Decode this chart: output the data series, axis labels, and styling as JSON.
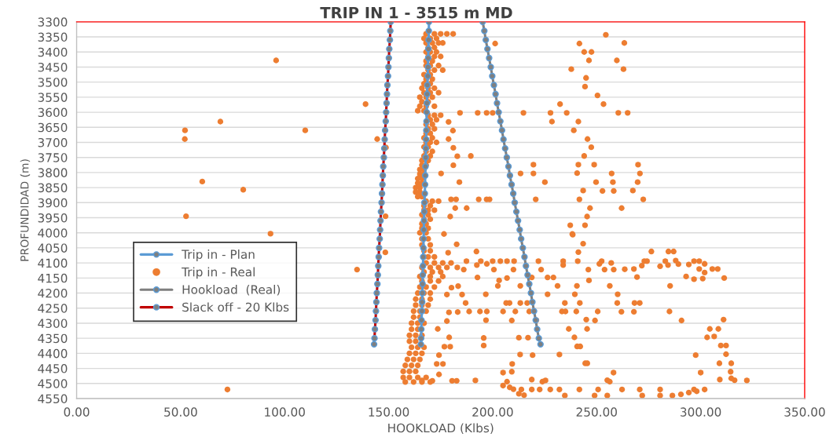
{
  "chart_data": {
    "type": "line",
    "title": "TRIP IN 1 - 3515 m MD",
    "xlabel": "HOOKLOAD (Klbs)",
    "ylabel": "PROFUNDIDAD (m)",
    "xlim": [
      0,
      350
    ],
    "xticks": [
      {
        "value": 0,
        "label": "0.00"
      },
      {
        "value": 50,
        "label": "50.00"
      },
      {
        "value": 100,
        "label": "100.00"
      },
      {
        "value": 150,
        "label": "150.00"
      },
      {
        "value": 200,
        "label": "200.00"
      },
      {
        "value": 250,
        "label": "250.00"
      },
      {
        "value": 300,
        "label": "300.00"
      },
      {
        "value": 350,
        "label": "350.00"
      }
    ],
    "ylim": [
      4550,
      3300
    ],
    "yticks": [
      3300,
      3350,
      3400,
      3450,
      3500,
      3550,
      3600,
      3650,
      3700,
      3750,
      3800,
      3850,
      3900,
      3950,
      4000,
      4050,
      4100,
      4150,
      4200,
      4250,
      4300,
      4350,
      4400,
      4450,
      4500,
      4550
    ],
    "grid": "y",
    "legend": "left",
    "marker": "circle",
    "line_style": "solid",
    "series": [
      {
        "name": "Trip in - Plan",
        "color": "#5b9bd5",
        "x": [
          169.4,
          169.3,
          169.2,
          169.1,
          169.0,
          168.9,
          168.8,
          168.6,
          168.5,
          168.4,
          168.3,
          168.2,
          168.1,
          168.0,
          167.9,
          167.8,
          167.7,
          167.6,
          167.5,
          167.4,
          167.2,
          167.1,
          167.0,
          166.9,
          166.8,
          166.7,
          166.6,
          166.5,
          166.4,
          166.3,
          166.2,
          166.1,
          166.0,
          165.8,
          165.7,
          165.6,
          165.5
        ],
        "values": [
          3300,
          3330,
          3360,
          3390,
          3420,
          3450,
          3480,
          3510,
          3540,
          3570,
          3600,
          3630,
          3660,
          3690,
          3720,
          3750,
          3780,
          3810,
          3840,
          3870,
          3900,
          3930,
          3960,
          3990,
          4020,
          4050,
          4080,
          4110,
          4140,
          4170,
          4200,
          4230,
          4260,
          4290,
          4320,
          4350,
          4370
        ]
      },
      {
        "name": "Trip in - Real",
        "type": "scatter",
        "color": "#ed7d31",
        "x": [
          95.9,
          138.9,
          69.1,
          52.1,
          109.9,
          52.0,
          144.5,
          148.7,
          60.4,
          80.1,
          52.6,
          148.5,
          93.2,
          148.4,
          134.8,
          72.5,
          254.4,
          201.2,
          241.7,
          263.3,
          244.0,
          247.5,
          246.3,
          259.7,
          237.8,
          262.9,
          244.9,
          244.4,
          250.4,
          232.4,
          253.3,
          184.3,
          192.8,
          197.1,
          200.0,
          214.8,
          227.8,
          235.6,
          260.4,
          264.9,
          228.5,
          241.2,
          178.8,
          239.0,
          180.9,
          245.6,
          178.8,
          247.4,
          181.1,
          244.0,
          183.0,
          189.5,
          219.6,
          241.2,
          248.8,
          269.9,
          181.1,
          213.4,
          219.6,
          240.6,
          257.2,
          270.8,
          175.2,
          225.1,
          249.7,
          257.8,
          269.7,
          184.0,
          243.5,
          252.8,
          258.2,
          267.4,
          193.3,
          197.1,
          198.5,
          220.7,
          241.7,
          272.4,
          180.0,
          182.4,
          246.8,
          262.0,
          187.5,
          182.0,
          245.4,
          179.6,
          237.3,
          244.4,
          238.3,
          176.6,
          238.5,
          243.5,
          182.7,
          192.2,
          241.2,
          276.3,
          284.5,
          287.0,
          178.6,
          187.4,
          194.3,
          200.0,
          203.7,
          206.9,
          210.3,
          222.0,
          233.9,
          240.9,
          252.4,
          257.0,
          272.9,
          283.0,
          288.0,
          296.8,
          299.3,
          301.9,
          192.4,
          197.2,
          233.9,
          251.3,
          280.5,
          284.3,
          289.3,
          294.3,
          186.1,
          200.6,
          210.0,
          223.3,
          246.0,
          253.8,
          258.2,
          263.5,
          267.9,
          271.7,
          274.2,
          299.3,
          305.6,
          308.2,
          301.9,
          192.7,
          218.8,
          226.4,
          229.2,
          269.4,
          293.0,
          296.8,
          301.0,
          311.3,
          246.3,
          203.1,
          206.9,
          202.5,
          213.3,
          231.2,
          240.5,
          256.3,
          285.3,
          183.4,
          180.2,
          178.0,
          185.3,
          196.7,
          226.4,
          239.5,
          260.1,
          187.0,
          206.5,
          208.1,
          213.3,
          216.6,
          234.7,
          241.9,
          259.9,
          268.2,
          270.7,
          179.0,
          183.2,
          188.7,
          193.9,
          197.2,
          205.0,
          210.9,
          217.6,
          233.3,
          235.0,
          240.2,
          250.5,
          261.9,
          267.9,
          285.0,
          178.0,
          196.8,
          209.2,
          221.0,
          245.0,
          249.2,
          290.8,
          311.0,
          236.6,
          245.4,
          304.4,
          308.5,
          173.6,
          179.1,
          195.7,
          212.6,
          217.0,
          239.3,
          303.1,
          306.5,
          179.6,
          176.8,
          195.7,
          240.6,
          242.1,
          309.7,
          312.2,
          213.2,
          219.2,
          232.1,
          297.6,
          312.2,
          174.2,
          173.1,
          176.1,
          209.4,
          244.5,
          245.5,
          309.0,
          314.7,
          174.2,
          205.0,
          209.2,
          258.1,
          300.0,
          314.4,
          166.0,
          171.0,
          180.5,
          182.7,
          191.7,
          206.9,
          218.8,
          223.9,
          225.4,
          255.1,
          256.3,
          309.2,
          314.7,
          316.3,
          322.2,
          205.0,
          208.2,
          210.0,
          213.8,
          218.8,
          222.6,
          227.7,
          232.1,
          241.7,
          250.7,
          262.2,
          270.7,
          280.5,
          296.8,
          301.9,
          212.6,
          215.1,
          234.7,
          249.0,
          255.1,
          271.9,
          280.5,
          286.4,
          290.5,
          294.3,
          298.1,
          168,
          172,
          175,
          178,
          181,
          167,
          170,
          173,
          168,
          171,
          174,
          176,
          169,
          172,
          168,
          170,
          173,
          169,
          172,
          175,
          168,
          171,
          168,
          170,
          174,
          169,
          172,
          176,
          167,
          170,
          168,
          171,
          167,
          170,
          166,
          169,
          172,
          167,
          170,
          174,
          165,
          168,
          171,
          166,
          169,
          165,
          168,
          172,
          164,
          167,
          169,
          172,
          175,
          170,
          173,
          168,
          171,
          169,
          172,
          168,
          170,
          167,
          171,
          168,
          170,
          173,
          167,
          169,
          168,
          171,
          167,
          170,
          166,
          169,
          166,
          168,
          165,
          167,
          165,
          167,
          164,
          166,
          164,
          166,
          163,
          165,
          163,
          165,
          164,
          166,
          168,
          171,
          174,
          167,
          170,
          167,
          169,
          172,
          166,
          169,
          167,
          170,
          166,
          168,
          166,
          169,
          165,
          168,
          166,
          169,
          166,
          170,
          167,
          170,
          167,
          169,
          172,
          168,
          172,
          176,
          180,
          166,
          170,
          174,
          178,
          183,
          167,
          171,
          175,
          165,
          170,
          176,
          166,
          170,
          174,
          165,
          168,
          172,
          164,
          167,
          170,
          163,
          166,
          170,
          163,
          166,
          169,
          162,
          165,
          168,
          162,
          165,
          161,
          164,
          167,
          161,
          164,
          160,
          163,
          166,
          160,
          163,
          161,
          164,
          167,
          160,
          163,
          166,
          159,
          162,
          165,
          158,
          161,
          164,
          157,
          160,
          163,
          157,
          160,
          164,
          168,
          158,
          162,
          166,
          170
        ],
        "values": [
          3428,
          3573,
          3631,
          3660,
          3660,
          3689,
          3689,
          3717,
          3830,
          3857,
          3945,
          3945,
          4003,
          4065,
          4122,
          4520,
          3343,
          3372,
          3372,
          3370,
          3400,
          3400,
          3428,
          3428,
          3457,
          3457,
          3486,
          3515,
          3544,
          3573,
          3573,
          3602,
          3602,
          3602,
          3602,
          3602,
          3602,
          3602,
          3602,
          3602,
          3631,
          3631,
          3632,
          3660,
          3661,
          3689,
          3689,
          3716,
          3718,
          3745,
          3746,
          3745,
          3774,
          3774,
          3774,
          3774,
          3776,
          3803,
          3803,
          3802,
          3803,
          3803,
          3803,
          3832,
          3832,
          3832,
          3832,
          3832,
          3860,
          3861,
          3861,
          3860,
          3889,
          3889,
          3889,
          3889,
          3889,
          3889,
          3889,
          3889,
          3918,
          3918,
          3918,
          3918,
          3946,
          3946,
          3975,
          3975,
          4004,
          4004,
          4006,
          4036,
          4038,
          4062,
          4064,
          4062,
          4062,
          4062,
          4066,
          4094,
          4094,
          4094,
          4094,
          4094,
          4094,
          4094,
          4094,
          4094,
          4094,
          4100,
          4094,
          4094,
          4092,
          4094,
          4094,
          4103,
          4107,
          4103,
          4107,
          4103,
          4111,
          4107,
          4104,
          4105,
          4122,
          4122,
          4122,
          4122,
          4122,
          4122,
          4122,
          4121,
          4120,
          4109,
          4094,
          4120,
          4120,
          4120,
          4132,
          4148,
          4148,
          4148,
          4148,
          4147,
          4145,
          4154,
          4152,
          4150,
          4158,
          4158,
          4150,
          4176,
          4176,
          4176,
          4176,
          4176,
          4176,
          4177,
          4182,
          4205,
          4205,
          4204,
          4204,
          4204,
          4204,
          4233,
          4233,
          4233,
          4233,
          4233,
          4233,
          4233,
          4233,
          4233,
          4233,
          4264,
          4263,
          4261,
          4261,
          4261,
          4261,
          4261,
          4261,
          4261,
          4261,
          4261,
          4261,
          4262,
          4262,
          4261,
          4293,
          4290,
          4291,
          4290,
          4288,
          4291,
          4291,
          4288,
          4319,
          4319,
          4319,
          4319,
          4319,
          4347,
          4349,
          4348,
          4348,
          4347,
          4347,
          4344,
          4378,
          4378,
          4374,
          4377,
          4377,
          4374,
          4374,
          4404,
          4406,
          4404,
          4406,
          4403,
          4406,
          4435,
          4435,
          4435,
          4433,
          4433,
          4433,
          4433,
          4470,
          4464,
          4461,
          4464,
          4464,
          4461,
          4490,
          4491,
          4491,
          4491,
          4490,
          4494,
          4487,
          4494,
          4490,
          4489,
          4494,
          4487,
          4483,
          4489,
          4490,
          4507,
          4513,
          4519,
          4520,
          4520,
          4520,
          4520,
          4520,
          4520,
          4520,
          4520,
          4520,
          4520,
          4520,
          4520,
          4534,
          4539,
          4540,
          4540,
          4540,
          4540,
          4540,
          4540,
          4536,
          4530,
          4526,
          3340,
          3340,
          3340,
          3340,
          3340,
          3355,
          3355,
          3355,
          3370,
          3370,
          3370,
          3370,
          3385,
          3385,
          3400,
          3400,
          3400,
          3415,
          3415,
          3415,
          3430,
          3430,
          3445,
          3445,
          3445,
          3460,
          3460,
          3460,
          3475,
          3475,
          3490,
          3490,
          3505,
          3505,
          3520,
          3520,
          3520,
          3535,
          3535,
          3535,
          3550,
          3550,
          3550,
          3565,
          3565,
          3580,
          3580,
          3580,
          3595,
          3595,
          3610,
          3610,
          3610,
          3625,
          3625,
          3640,
          3640,
          3655,
          3655,
          3670,
          3670,
          3685,
          3685,
          3700,
          3700,
          3700,
          3715,
          3715,
          3730,
          3730,
          3745,
          3745,
          3760,
          3760,
          3775,
          3775,
          3790,
          3790,
          3805,
          3805,
          3820,
          3820,
          3835,
          3835,
          3850,
          3850,
          3865,
          3865,
          3880,
          3880,
          3895,
          3895,
          3895,
          3910,
          3910,
          3925,
          3925,
          3925,
          3940,
          3940,
          3955,
          3955,
          3970,
          3970,
          3985,
          3985,
          4000,
          4000,
          4020,
          4020,
          4040,
          4040,
          4060,
          4060,
          4080,
          4080,
          4080,
          4100,
          4100,
          4100,
          4100,
          4115,
          4115,
          4115,
          4115,
          4115,
          4130,
          4130,
          4130,
          4145,
          4145,
          4145,
          4160,
          4160,
          4160,
          4180,
          4180,
          4180,
          4200,
          4200,
          4200,
          4220,
          4220,
          4220,
          4240,
          4240,
          4240,
          4260,
          4260,
          4260,
          4280,
          4280,
          4300,
          4300,
          4300,
          4320,
          4320,
          4340,
          4340,
          4340,
          4360,
          4360,
          4380,
          4380,
          4380,
          4400,
          4400,
          4400,
          4420,
          4420,
          4420,
          4440,
          4440,
          4440,
          4460,
          4460,
          4460,
          4480,
          4480,
          4480,
          4480,
          4495,
          4495,
          4495,
          4495
        ]
      },
      {
        "name": "Hookload  (Real)",
        "color": "#7f7f7f",
        "x": [
          195.2,
          196.0,
          196.7,
          197.5,
          198.3,
          199.1,
          199.8,
          200.6,
          201.4,
          202.1,
          202.9,
          203.7,
          204.5,
          205.2,
          206.0,
          206.8,
          207.6,
          208.3,
          209.1,
          209.9,
          210.6,
          211.4,
          212.2,
          213.0,
          213.7,
          214.5,
          215.3,
          216.0,
          216.8,
          217.6,
          218.4,
          219.1,
          219.9,
          220.7,
          221.4,
          222.2,
          223.0
        ],
        "values": [
          3300,
          3330,
          3360,
          3390,
          3420,
          3450,
          3480,
          3510,
          3540,
          3570,
          3600,
          3630,
          3660,
          3690,
          3720,
          3750,
          3780,
          3810,
          3840,
          3870,
          3900,
          3930,
          3960,
          3990,
          4020,
          4050,
          4080,
          4110,
          4140,
          4170,
          4200,
          4230,
          4260,
          4290,
          4320,
          4350,
          4370
        ]
      },
      {
        "name": "Slack off - 20 Klbs",
        "color": "#c00000",
        "x": [
          151.0,
          150.8,
          150.6,
          150.3,
          150.1,
          149.9,
          149.7,
          149.4,
          149.2,
          149.0,
          148.8,
          148.6,
          148.3,
          148.1,
          147.9,
          147.7,
          147.4,
          147.2,
          147.0,
          146.8,
          146.6,
          146.3,
          146.1,
          145.9,
          145.7,
          145.4,
          145.2,
          145.0,
          144.8,
          144.6,
          144.3,
          144.1,
          143.9,
          143.7,
          143.4,
          143.2,
          143.0
        ],
        "values": [
          3300,
          3330,
          3360,
          3390,
          3420,
          3450,
          3480,
          3510,
          3540,
          3570,
          3600,
          3630,
          3660,
          3690,
          3720,
          3750,
          3780,
          3810,
          3840,
          3870,
          3900,
          3930,
          3960,
          3990,
          4020,
          4050,
          4080,
          4110,
          4140,
          4170,
          4200,
          4230,
          4260,
          4290,
          4320,
          4350,
          4370
        ]
      }
    ]
  }
}
